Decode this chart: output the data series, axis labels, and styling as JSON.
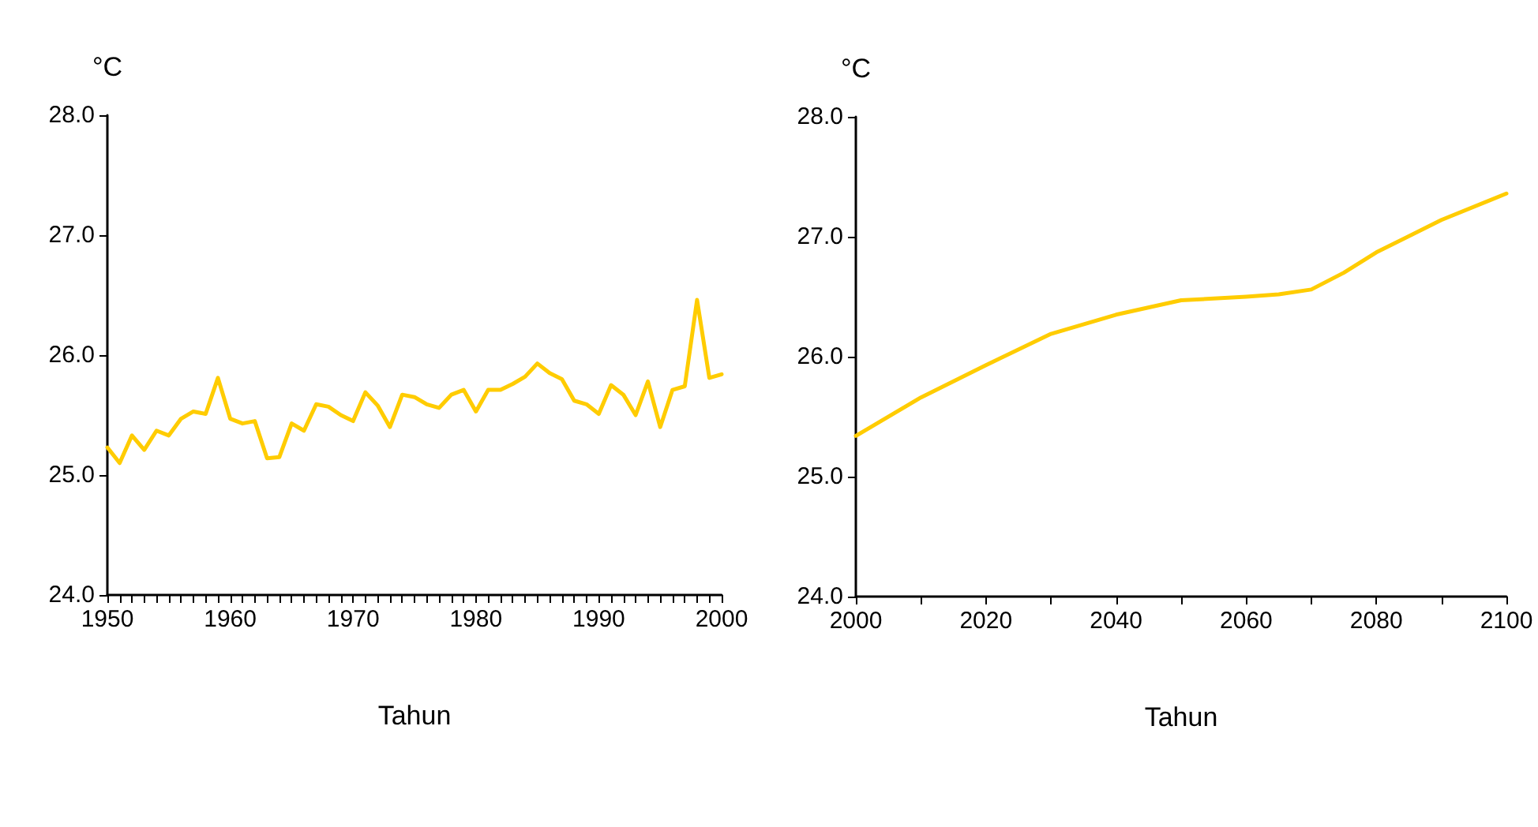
{
  "chart_data": [
    {
      "type": "line",
      "xlabel": "Tahun",
      "ylabel": "°C",
      "grid": false,
      "x": [
        1950,
        1951,
        1952,
        1953,
        1954,
        1955,
        1956,
        1957,
        1958,
        1959,
        1960,
        1961,
        1962,
        1963,
        1964,
        1965,
        1966,
        1967,
        1968,
        1969,
        1970,
        1971,
        1972,
        1973,
        1974,
        1975,
        1976,
        1977,
        1978,
        1979,
        1980,
        1981,
        1982,
        1983,
        1984,
        1985,
        1986,
        1987,
        1988,
        1989,
        1990,
        1991,
        1992,
        1993,
        1994,
        1995,
        1996,
        1997,
        1998,
        1999,
        2000
      ],
      "series": [
        {
          "color": "#ffcc00",
          "values": [
            25.23,
            25.1,
            25.33,
            25.21,
            25.37,
            25.33,
            25.47,
            25.53,
            25.51,
            25.81,
            25.47,
            25.43,
            25.45,
            25.14,
            25.15,
            25.43,
            25.37,
            25.59,
            25.57,
            25.5,
            25.45,
            25.69,
            25.58,
            25.4,
            25.67,
            25.65,
            25.59,
            25.56,
            25.67,
            25.71,
            25.53,
            25.71,
            25.71,
            25.76,
            25.82,
            25.93,
            25.85,
            25.8,
            25.62,
            25.59,
            25.51,
            25.75,
            25.67,
            25.5,
            25.78,
            25.4,
            25.71,
            25.74,
            26.46,
            25.81,
            25.84
          ]
        }
      ],
      "xlim": [
        1950,
        2000
      ],
      "xticks": [
        1950,
        {
          "value": 1951,
          "label": null
        },
        {
          "value": 1952,
          "label": null
        },
        {
          "value": 1953,
          "label": null
        },
        {
          "value": 1954,
          "label": null
        },
        {
          "value": 1955,
          "label": null
        },
        {
          "value": 1956,
          "label": null
        },
        {
          "value": 1957,
          "label": null
        },
        {
          "value": 1958,
          "label": null
        },
        {
          "value": 1959,
          "label": null
        },
        1960,
        {
          "value": 1961,
          "label": null
        },
        {
          "value": 1962,
          "label": null
        },
        {
          "value": 1963,
          "label": null
        },
        {
          "value": 1964,
          "label": null
        },
        {
          "value": 1965,
          "label": null
        },
        {
          "value": 1966,
          "label": null
        },
        {
          "value": 1967,
          "label": null
        },
        {
          "value": 1968,
          "label": null
        },
        {
          "value": 1969,
          "label": null
        },
        1970,
        {
          "value": 1971,
          "label": null
        },
        {
          "value": 1972,
          "label": null
        },
        {
          "value": 1973,
          "label": null
        },
        {
          "value": 1974,
          "label": null
        },
        {
          "value": 1975,
          "label": null
        },
        {
          "value": 1976,
          "label": null
        },
        {
          "value": 1977,
          "label": null
        },
        {
          "value": 1978,
          "label": null
        },
        {
          "value": 1979,
          "label": null
        },
        1980,
        {
          "value": 1981,
          "label": null
        },
        {
          "value": 1982,
          "label": null
        },
        {
          "value": 1983,
          "label": null
        },
        {
          "value": 1984,
          "label": null
        },
        {
          "value": 1985,
          "label": null
        },
        {
          "value": 1986,
          "label": null
        },
        {
          "value": 1987,
          "label": null
        },
        {
          "value": 1988,
          "label": null
        },
        {
          "value": 1989,
          "label": null
        },
        1990,
        {
          "value": 1991,
          "label": null
        },
        {
          "value": 1992,
          "label": null
        },
        {
          "value": 1993,
          "label": null
        },
        {
          "value": 1994,
          "label": null
        },
        {
          "value": 1995,
          "label": null
        },
        {
          "value": 1996,
          "label": null
        },
        {
          "value": 1997,
          "label": null
        },
        {
          "value": 1998,
          "label": null
        },
        {
          "value": 1999,
          "label": null
        },
        2000
      ],
      "ylim": [
        24,
        28
      ],
      "yticks": [
        {
          "value": 24,
          "label": "24.0"
        },
        {
          "value": 25,
          "label": "25.0"
        },
        {
          "value": 26,
          "label": "26.0"
        },
        {
          "value": 27,
          "label": "27.0"
        },
        {
          "value": 28,
          "label": "28.0"
        }
      ]
    },
    {
      "type": "line",
      "xlabel": "Tahun",
      "ylabel": "°C",
      "grid": false,
      "x": [
        2000,
        2010,
        2020,
        2030,
        2040,
        2050,
        2060,
        2065,
        2070,
        2075,
        2080,
        2090,
        2100
      ],
      "series": [
        {
          "color": "#ffcc00",
          "values": [
            25.34,
            25.66,
            25.93,
            26.19,
            26.35,
            26.47,
            26.5,
            26.52,
            26.56,
            26.7,
            26.87,
            27.14,
            27.36
          ]
        }
      ],
      "xlim": [
        2000,
        2100
      ],
      "xticks": [
        2000,
        {
          "value": 2010,
          "label": null
        },
        2020,
        {
          "value": 2030,
          "label": null
        },
        2040,
        {
          "value": 2050,
          "label": null
        },
        2060,
        {
          "value": 2070,
          "label": null
        },
        2080,
        {
          "value": 2090,
          "label": null
        },
        2100
      ],
      "ylim": [
        24,
        28
      ],
      "yticks": [
        {
          "value": 24,
          "label": "24.0"
        },
        {
          "value": 25,
          "label": "25.0"
        },
        {
          "value": 26,
          "label": "26.0"
        },
        {
          "value": 27,
          "label": "27.0"
        },
        {
          "value": 28,
          "label": "28.0"
        }
      ]
    }
  ]
}
